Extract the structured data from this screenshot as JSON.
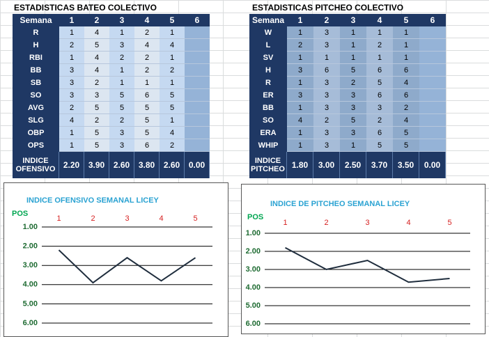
{
  "tables": [
    {
      "title": "ESTADISTICAS BATEO COLECTIVO",
      "header": [
        "Semana",
        "1",
        "2",
        "3",
        "4",
        "5",
        "6"
      ],
      "rows": [
        [
          "R",
          "1",
          "4",
          "1",
          "2",
          "1"
        ],
        [
          "H",
          "2",
          "5",
          "3",
          "4",
          "4"
        ],
        [
          "RBI",
          "1",
          "4",
          "2",
          "2",
          "1"
        ],
        [
          "BB",
          "3",
          "4",
          "1",
          "2",
          "2"
        ],
        [
          "SB",
          "3",
          "2",
          "1",
          "1",
          "1"
        ],
        [
          "SO",
          "3",
          "3",
          "5",
          "6",
          "5"
        ],
        [
          "AVG",
          "2",
          "5",
          "5",
          "5",
          "5"
        ],
        [
          "SLG",
          "4",
          "2",
          "2",
          "5",
          "1"
        ],
        [
          "OBP",
          "1",
          "5",
          "3",
          "5",
          "4"
        ],
        [
          "OPS",
          "1",
          "5",
          "3",
          "6",
          "2"
        ]
      ],
      "index_row": [
        "INDICE OFENSIVO",
        "2.20",
        "3.90",
        "2.60",
        "3.80",
        "2.60",
        "0.00"
      ]
    },
    {
      "title": "ESTADISTICAS PITCHEO COLECTIVO",
      "header": [
        "Semana",
        "1",
        "2",
        "3",
        "4",
        "5",
        "6"
      ],
      "rows": [
        [
          "W",
          "1",
          "3",
          "1",
          "1",
          "1"
        ],
        [
          "L",
          "2",
          "3",
          "1",
          "2",
          "1"
        ],
        [
          "SV",
          "1",
          "1",
          "1",
          "1",
          "1"
        ],
        [
          "H",
          "3",
          "6",
          "5",
          "6",
          "6"
        ],
        [
          "R",
          "1",
          "3",
          "2",
          "5",
          "4"
        ],
        [
          "ER",
          "3",
          "3",
          "3",
          "6",
          "6"
        ],
        [
          "BB",
          "1",
          "3",
          "3",
          "3",
          "2"
        ],
        [
          "SO",
          "4",
          "2",
          "5",
          "2",
          "4"
        ],
        [
          "ERA",
          "1",
          "3",
          "3",
          "6",
          "5"
        ],
        [
          "WHIP",
          "1",
          "3",
          "1",
          "5",
          "5"
        ]
      ],
      "index_row": [
        "INDICE PITCHEO",
        "1.80",
        "3.00",
        "2.50",
        "3.70",
        "3.50",
        "0.00"
      ]
    }
  ],
  "chart_data": [
    {
      "type": "line",
      "title": "INDICE OFENSIVO SEMANAL LICEY",
      "y_label": "POS",
      "categories": [
        "1",
        "2",
        "3",
        "4",
        "5"
      ],
      "values": [
        2.2,
        3.9,
        2.6,
        3.8,
        2.6
      ],
      "color": "#1f2d3d",
      "ylim": [
        1,
        6
      ],
      "reverse_y": true,
      "grid": true,
      "yticks": [
        {
          "value": 1,
          "label": "1.00"
        },
        {
          "value": 2,
          "label": "2.00"
        },
        {
          "value": 3,
          "label": "3.00"
        },
        {
          "value": 4,
          "label": "4.00"
        },
        {
          "value": 5,
          "label": "5.00"
        },
        {
          "value": 6,
          "label": "6.00"
        }
      ]
    },
    {
      "type": "line",
      "title": "INDICE DE PITCHEO SEMANAL LICEY",
      "y_label": "POS",
      "categories": [
        "1",
        "2",
        "3",
        "4",
        "5"
      ],
      "values": [
        1.8,
        3.0,
        2.5,
        3.7,
        3.5
      ],
      "color": "#1f2d3d",
      "ylim": [
        1,
        6
      ],
      "reverse_y": true,
      "grid": true,
      "yticks": [
        {
          "value": 1,
          "label": "1.00"
        },
        {
          "value": 2,
          "label": "2.00"
        },
        {
          "value": 3,
          "label": "3.00"
        },
        {
          "value": 4,
          "label": "4.00"
        },
        {
          "value": 5,
          "label": "5.00"
        },
        {
          "value": 6,
          "label": "6.00"
        }
      ]
    }
  ]
}
